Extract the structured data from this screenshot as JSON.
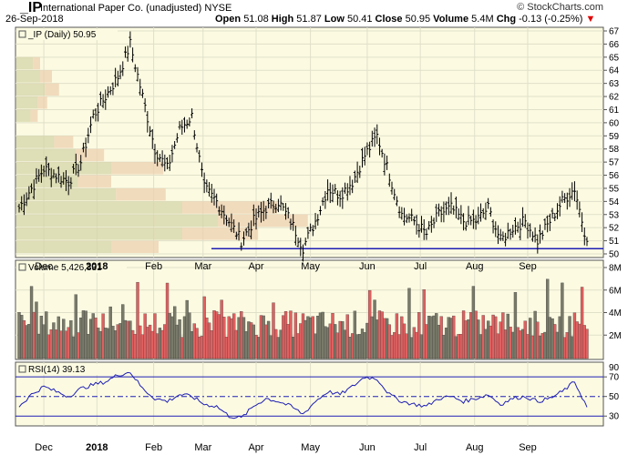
{
  "header": {
    "symbol": "_IP",
    "company": "International Paper Co. (unadjusted)",
    "exchange": "NYSE",
    "date": "26-Sep-2018",
    "open_label": "Open",
    "open_value": "51.08",
    "high_label": "High",
    "high_value": "51.87",
    "low_label": "Low",
    "low_value": "50.41",
    "close_label": "Close",
    "close_value": "50.95",
    "volume_label": "Volume",
    "volume_value": "5.4M",
    "chg_label": "Chg",
    "chg_value": "-0.13 (-0.25%)",
    "chg_arrow": "▼",
    "credit": "© StockCharts.com"
  },
  "colors": {
    "panel_bg": "#fcfbe2",
    "up_bar": "#000000",
    "volume_up": "#7a7a6a",
    "volume_down": "#e06060",
    "rsi_line": "#1e1eb4",
    "support_line": "#1e1eb4",
    "volume_by_price_up": "#d4d4a8",
    "volume_by_price_down": "#eed0b0"
  },
  "chart_data": [
    {
      "type": "ohlc",
      "title": "_IP (Daily) 50.95",
      "ylim": [
        50,
        67
      ],
      "y_ticks": [
        50,
        51,
        52,
        53,
        54,
        55,
        56,
        57,
        58,
        59,
        60,
        61,
        62,
        63,
        64,
        65,
        66,
        67
      ],
      "x_ticks": [
        "Dec",
        "2018",
        "Feb",
        "Mar",
        "Apr",
        "May",
        "Jun",
        "Jul",
        "Aug",
        "Sep"
      ],
      "closes_weekly": [
        53.5,
        55.0,
        56.5,
        56.0,
        55.5,
        57.0,
        60.5,
        62.0,
        63.5,
        66.0,
        62.0,
        58.0,
        56.5,
        59.5,
        60.5,
        55.0,
        54.0,
        52.5,
        51.0,
        52.5,
        53.5,
        54.0,
        52.5,
        50.5,
        52.5,
        55.0,
        54.5,
        55.5,
        57.5,
        59.0,
        56.0,
        53.0,
        52.5,
        51.5,
        53.0,
        53.5,
        52.5,
        52.5,
        53.5,
        51.0,
        52.0,
        52.5,
        51.0,
        52.5,
        54.0,
        55.0,
        50.95
      ],
      "support_line": 50.4,
      "volume_by_price": [
        {
          "price": 50.5,
          "up": 0.4,
          "down": 0.2
        },
        {
          "price": 51.5,
          "up": 0.7,
          "down": 0.32
        },
        {
          "price": 52.5,
          "up": 0.85,
          "down": 0.38
        },
        {
          "price": 53.5,
          "up": 0.7,
          "down": 0.4
        },
        {
          "price": 54.5,
          "up": 0.42,
          "down": 0.21
        },
        {
          "price": 55.5,
          "up": 0.26,
          "down": 0.14
        },
        {
          "price": 56.5,
          "up": 0.4,
          "down": 0.22
        },
        {
          "price": 57.5,
          "up": 0.25,
          "down": 0.12
        },
        {
          "price": 58.5,
          "up": 0.16,
          "down": 0.08
        },
        {
          "price": 60.5,
          "up": 0.06,
          "down": 0.03
        },
        {
          "price": 61.5,
          "up": 0.09,
          "down": 0.04
        },
        {
          "price": 62.5,
          "up": 0.12,
          "down": 0.06
        },
        {
          "price": 63.5,
          "up": 0.1,
          "down": 0.05
        },
        {
          "price": 64.5,
          "up": 0.07,
          "down": 0.03
        }
      ]
    },
    {
      "type": "bar",
      "title": "Volume 5,426,331",
      "ylim": [
        0,
        8
      ],
      "y_ticks": [
        2,
        4,
        6,
        8
      ],
      "y_tick_labels": [
        "2M",
        "4M",
        "6M",
        "8M"
      ],
      "units": "M"
    },
    {
      "type": "line",
      "title": "RSI(14) 39.13",
      "ylim": [
        20,
        85
      ],
      "y_ticks": [
        30,
        50,
        70,
        90
      ],
      "reference_lines": [
        30,
        50,
        70
      ],
      "values_weekly": [
        40,
        52,
        60,
        55,
        50,
        58,
        62,
        65,
        72,
        75,
        58,
        48,
        45,
        52,
        50,
        42,
        40,
        30,
        28,
        40,
        48,
        45,
        40,
        32,
        45,
        55,
        52,
        60,
        70,
        68,
        52,
        45,
        42,
        40,
        48,
        50,
        45,
        48,
        52,
        42,
        48,
        50,
        45,
        48,
        55,
        65,
        39.13
      ],
      "last_value": 39.13
    }
  ]
}
